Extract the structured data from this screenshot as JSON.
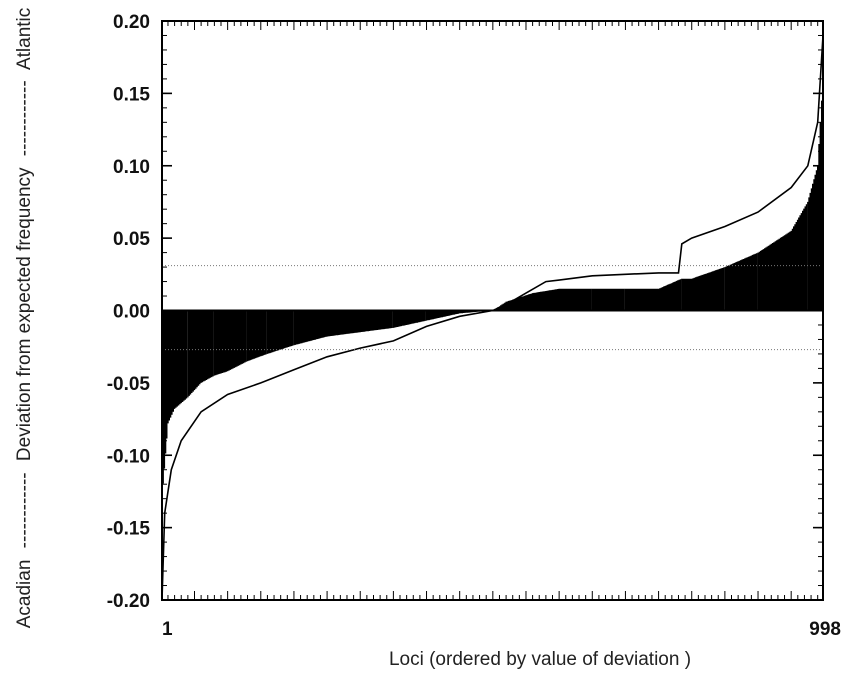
{
  "chart_data": {
    "type": "bar",
    "title": "",
    "xlabel": "Loci (ordered by value of deviation )",
    "ylabel": {
      "left_end": "Acadian",
      "middle": "Deviation from expected frequency",
      "right_end": "Atlantic",
      "connector": "------------"
    },
    "ylim": [
      -0.2,
      0.2
    ],
    "yticks": [
      "-0.20",
      "-0.15",
      "-0.10",
      "-0.05",
      "0.00",
      "0.05",
      "0.10",
      "0.15",
      "0.20"
    ],
    "xlim": [
      1,
      998
    ],
    "xticks": [
      "1",
      "998"
    ],
    "grid": false,
    "legend": "none",
    "colors": {
      "bars": "#000000",
      "envelope": "#000000",
      "reference_lines": "#777777"
    },
    "series": [
      {
        "kind": "bars",
        "x": [
          1,
          10,
          20,
          40,
          60,
          80,
          100,
          130,
          160,
          200,
          250,
          300,
          350,
          400,
          450,
          500,
          520,
          560,
          600,
          650,
          700,
          750,
          785,
          800,
          850,
          900,
          950,
          975,
          990,
          998
        ],
        "values": [
          -0.13,
          -0.078,
          -0.068,
          -0.06,
          -0.05,
          -0.045,
          -0.042,
          -0.035,
          -0.03,
          -0.024,
          -0.018,
          -0.015,
          -0.012,
          -0.007,
          -0.002,
          0.0,
          0.006,
          0.012,
          0.015,
          0.015,
          0.015,
          0.015,
          0.022,
          0.022,
          0.03,
          0.04,
          0.055,
          0.075,
          0.1,
          0.16
        ]
      },
      {
        "kind": "line",
        "x": [
          1,
          5,
          15,
          30,
          60,
          100,
          150,
          200,
          250,
          300,
          350,
          400,
          450,
          500,
          520,
          550,
          580,
          600,
          650,
          700,
          750,
          780,
          785,
          800,
          850,
          900,
          950,
          975,
          990,
          998
        ],
        "values": [
          -0.2,
          -0.14,
          -0.11,
          -0.09,
          -0.07,
          -0.058,
          -0.05,
          -0.041,
          -0.032,
          -0.026,
          -0.021,
          -0.011,
          -0.004,
          0.0,
          0.004,
          0.012,
          0.02,
          0.021,
          0.024,
          0.025,
          0.026,
          0.026,
          0.046,
          0.05,
          0.058,
          0.068,
          0.085,
          0.1,
          0.13,
          0.19
        ]
      }
    ],
    "reference_lines": [
      0.031,
      -0.027
    ]
  }
}
